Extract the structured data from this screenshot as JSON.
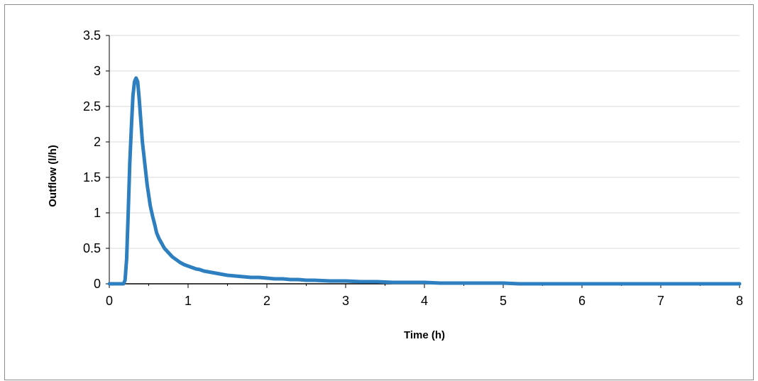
{
  "chart_data": {
    "type": "line",
    "title": "",
    "xlabel": "Time (h)",
    "ylabel": "Outflow (l/h)",
    "xlim": [
      0,
      8
    ],
    "ylim": [
      0,
      3.5
    ],
    "xticks": [
      "0",
      "1",
      "2",
      "3",
      "4",
      "5",
      "6",
      "7",
      "8"
    ],
    "yticks": [
      "0",
      "0.5",
      "1",
      "1.5",
      "2",
      "2.5",
      "3",
      "3.5"
    ],
    "grid": "horizontal",
    "legend": "none",
    "series": [
      {
        "color": "#2e7fc0",
        "x": [
          0,
          0.18,
          0.2,
          0.22,
          0.24,
          0.26,
          0.28,
          0.3,
          0.32,
          0.34,
          0.36,
          0.38,
          0.4,
          0.42,
          0.44,
          0.46,
          0.48,
          0.5,
          0.52,
          0.55,
          0.58,
          0.6,
          0.63,
          0.66,
          0.7,
          0.75,
          0.8,
          0.85,
          0.9,
          0.95,
          1.0,
          1.05,
          1.1,
          1.15,
          1.2,
          1.3,
          1.4,
          1.5,
          1.6,
          1.7,
          1.8,
          1.9,
          2.0,
          2.1,
          2.2,
          2.3,
          2.4,
          2.5,
          2.6,
          2.8,
          3.0,
          3.2,
          3.4,
          3.6,
          3.8,
          4.0,
          4.2,
          4.4,
          4.6,
          4.8,
          5.0,
          5.2,
          5.4,
          5.6,
          5.8,
          6.0,
          6.5,
          7.0,
          7.4,
          7.5,
          8.0
        ],
        "y": [
          0,
          0,
          0.05,
          0.35,
          1.0,
          1.7,
          2.2,
          2.65,
          2.85,
          2.9,
          2.85,
          2.6,
          2.3,
          2.0,
          1.8,
          1.6,
          1.4,
          1.25,
          1.1,
          0.95,
          0.82,
          0.72,
          0.64,
          0.58,
          0.5,
          0.44,
          0.38,
          0.34,
          0.3,
          0.27,
          0.25,
          0.23,
          0.21,
          0.2,
          0.18,
          0.16,
          0.14,
          0.12,
          0.11,
          0.1,
          0.09,
          0.09,
          0.08,
          0.07,
          0.07,
          0.06,
          0.06,
          0.05,
          0.05,
          0.04,
          0.04,
          0.03,
          0.03,
          0.02,
          0.02,
          0.02,
          0.01,
          0.01,
          0.01,
          0.01,
          0.01,
          0.0,
          0.0,
          0.0,
          0.0,
          0.0,
          0.0,
          0.0,
          0.0,
          0.0,
          0.0
        ]
      }
    ]
  }
}
